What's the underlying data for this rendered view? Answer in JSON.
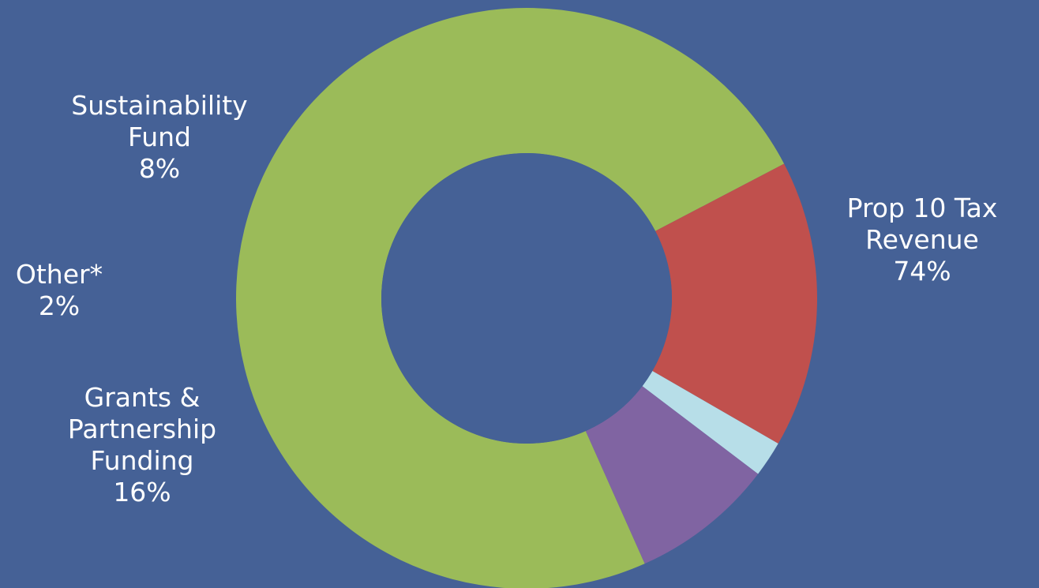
{
  "background": "#456196",
  "chart_data": {
    "type": "pie",
    "donut": true,
    "categories": [
      "Prop 10 Tax Revenue",
      "Grants & Partnership Funding",
      "Other*",
      "Sustainability Fund"
    ],
    "values": [
      74,
      16,
      2,
      8
    ],
    "unit": "%",
    "colors": [
      "#9bbb59",
      "#c0504d",
      "#b7dee8",
      "#8064a2"
    ],
    "hole_color": "#456196",
    "labels": [
      {
        "lines": [
          "Prop 10 Tax",
          "Revenue"
        ],
        "value": "74%"
      },
      {
        "lines": [
          "Grants &",
          "Partnership",
          "Funding"
        ],
        "value": "16%"
      },
      {
        "lines": [
          "Other*"
        ],
        "value": "2%"
      },
      {
        "lines": [
          "Sustainability",
          "Fund"
        ],
        "value": "8%"
      }
    ]
  }
}
